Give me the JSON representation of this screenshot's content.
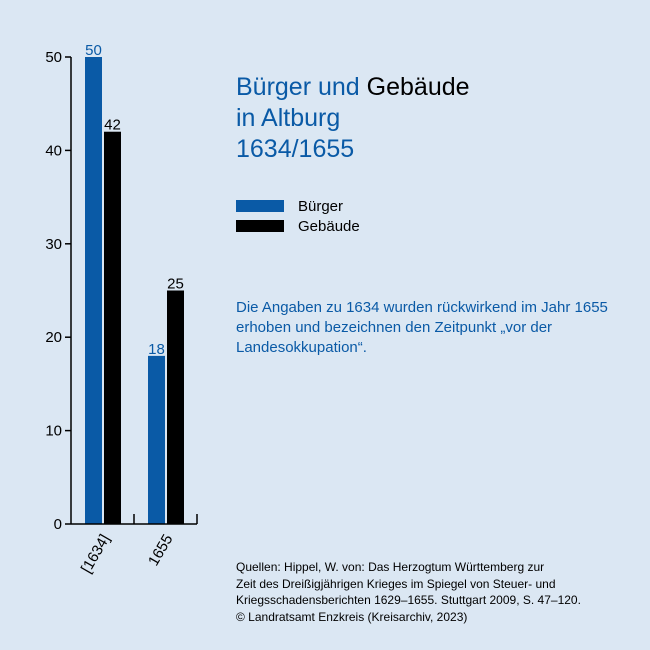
{
  "title": {
    "line1_blue": "Bürger und",
    "line1_black": "Gebäude",
    "line2": "in Altburg",
    "line3": "1634/1655"
  },
  "legend": [
    {
      "label": "Bürger",
      "color": "#0a5aa6"
    },
    {
      "label": "Gebäude",
      "color": "#000000"
    }
  ],
  "note": "Die Angaben zu 1634 wurden rückwirkend im Jahr 1655 erhoben und bezeichnen den Zeitpunkt „vor der Landesokkupation“.",
  "sources": [
    "Quellen: Hippel, W. von: Das Herzogtum Württemberg zur",
    "Zeit des Dreißigjährigen Krieges im Spiegel von Steuer- und",
    "Kriegsschadensberichten 1629–1655. Stuttgart 2009, S. 47–120.",
    "© Landratsamt Enzkreis (Kreisarchiv, 2023)"
  ],
  "chart_data": {
    "type": "bar",
    "categories": [
      "[1634]",
      "1655"
    ],
    "series": [
      {
        "name": "Bürger",
        "values": [
          50,
          18
        ],
        "color": "#0a5aa6"
      },
      {
        "name": "Gebäude",
        "values": [
          42,
          25
        ],
        "color": "#000000"
      }
    ],
    "ylim": [
      0,
      50
    ],
    "yticks": [
      0,
      10,
      20,
      30,
      40,
      50
    ],
    "grid": false,
    "legend_position": "right",
    "data_labels": true,
    "title": "Bürger und Gebäude in Altburg 1634/1655"
  }
}
